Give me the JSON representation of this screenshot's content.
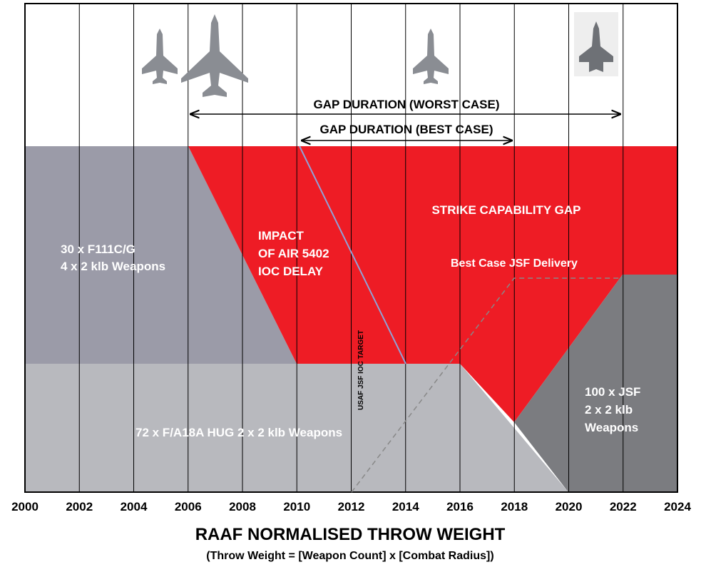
{
  "axis": {
    "ticks": [
      "2000",
      "2002",
      "2004",
      "2006",
      "2008",
      "2010",
      "2012",
      "2014",
      "2016",
      "2018",
      "2020",
      "2022",
      "2024"
    ]
  },
  "gap_worst": "GAP DURATION (WORST CASE)",
  "gap_best": "GAP DURATION (BEST CASE)",
  "strike_gap": "STRIKE CAPABILITY GAP",
  "f111": [
    "30 x F111C/G",
    "4 x 2 klb Weapons"
  ],
  "impact": [
    "IMPACT",
    "OF AIR 5402",
    "IOC DELAY"
  ],
  "best_case_jsf": "Best Case JSF Delivery",
  "usaf": "USAF JSF IOC TARGET",
  "fa18": "72 x F/A18A HUG  2 x 2 klb Weapons",
  "jsf": [
    "100 x JSF",
    "2 x 2 klb",
    "Weapons"
  ],
  "title": "RAAF NORMALISED THROW WEIGHT",
  "subtitle": "(Throw Weight = [Weapon Count] x [Combat Radius])"
}
